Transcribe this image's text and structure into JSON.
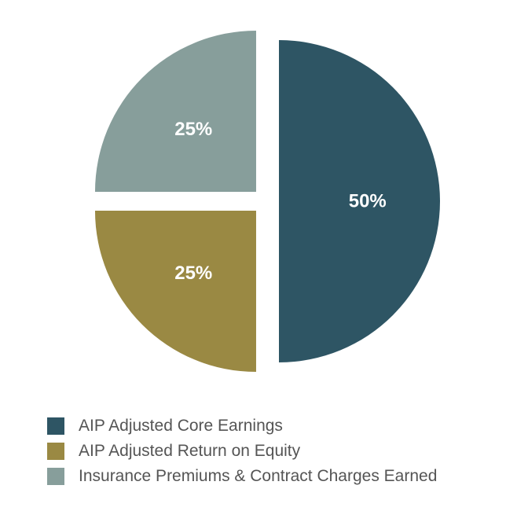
{
  "chart_data": {
    "type": "pie",
    "title": "",
    "categories": [
      "AIP Adjusted Core Earnings",
      "AIP Adjusted Return on Equity",
      "Insurance Premiums & Contract Charges Earned"
    ],
    "values": [
      50,
      25,
      25
    ],
    "labels": [
      "50%",
      "25%",
      "25%"
    ],
    "colors": [
      "#2e5564",
      "#9a8943",
      "#879e9b"
    ],
    "legend_position": "bottom-left",
    "exploded": true
  }
}
